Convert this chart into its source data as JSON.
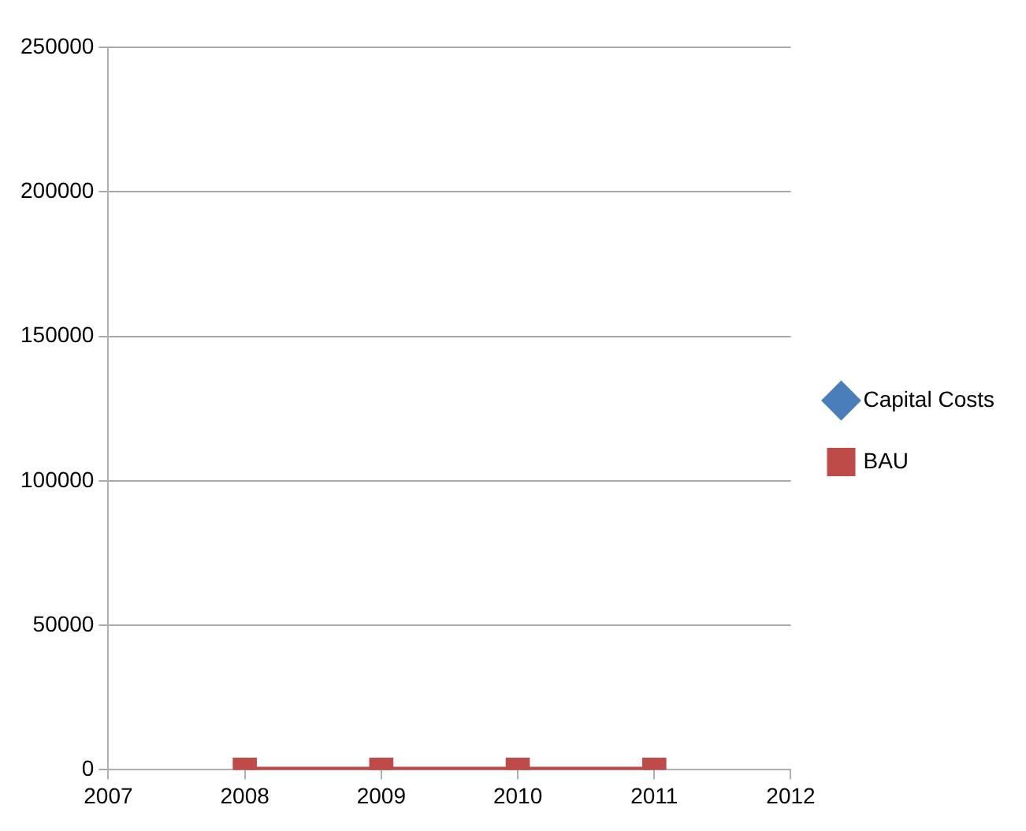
{
  "chart_data": {
    "type": "line",
    "x": [
      2008,
      2009,
      2010,
      2011
    ],
    "xlim": [
      2007,
      2012
    ],
    "xticks": [
      2007,
      2008,
      2009,
      2010,
      2011,
      2012
    ],
    "ylim": [
      0,
      250000
    ],
    "yticks": [
      0,
      50000,
      100000,
      150000,
      200000,
      250000
    ],
    "grid": "y",
    "legend": "right",
    "series": [
      {
        "name": "Capital Costs",
        "color": "#4a7ebb",
        "marker": "diamond",
        "values": [
          null,
          null,
          null,
          null
        ]
      },
      {
        "name": "BAU",
        "color": "#be4b48",
        "marker": "square",
        "values": [
          0,
          0,
          0,
          0
        ]
      }
    ]
  }
}
